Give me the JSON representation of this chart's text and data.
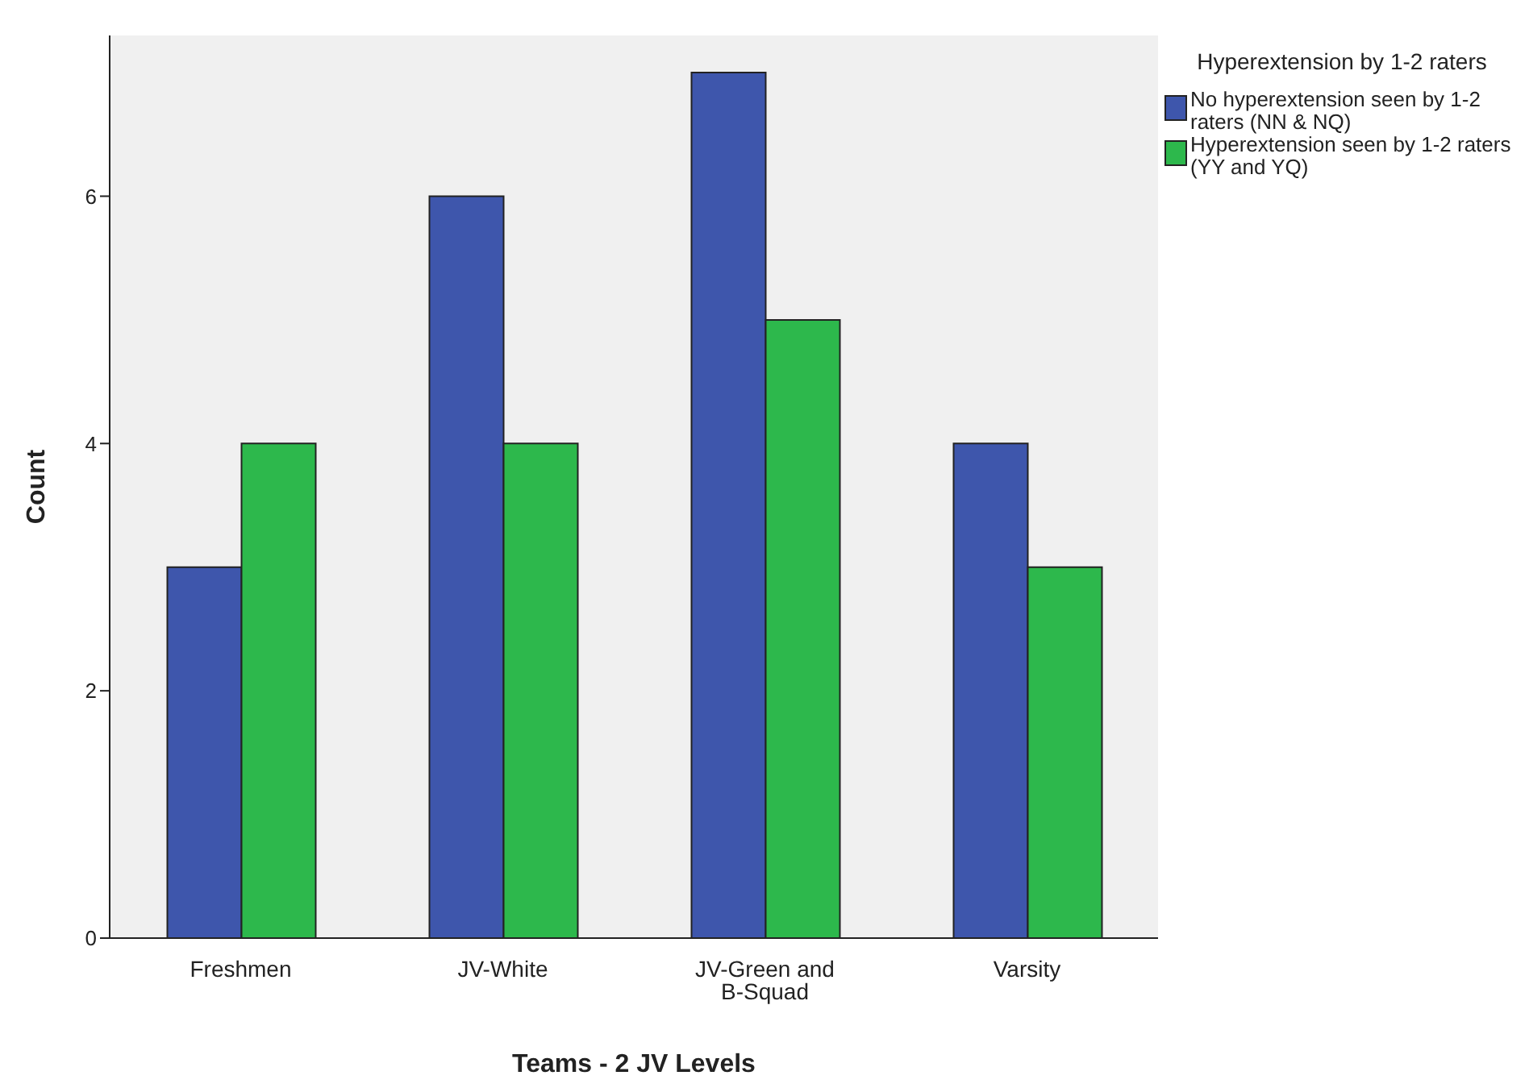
{
  "chart_data": {
    "type": "bar",
    "xlabel": "Teams - 2 JV Levels",
    "ylabel": "Count",
    "legend_title": "Hyperextension by 1-2 raters",
    "categories": [
      "Freshmen",
      "JV-White",
      "JV-Green and B-Squad",
      "Varsity"
    ],
    "series": [
      {
        "name": "No hyperextension seen by 1-2 raters (NN & NQ)",
        "color": "#3e56ac",
        "values": [
          3,
          6,
          7,
          4
        ]
      },
      {
        "name": "Hyperextension seen by 1-2 raters (YY and YQ)",
        "color": "#2db84c",
        "values": [
          4,
          4,
          5,
          3
        ]
      }
    ],
    "ylim": [
      0,
      7.3
    ],
    "yticks": [
      0,
      2,
      4,
      6
    ],
    "grid": false,
    "legend": "top right"
  }
}
